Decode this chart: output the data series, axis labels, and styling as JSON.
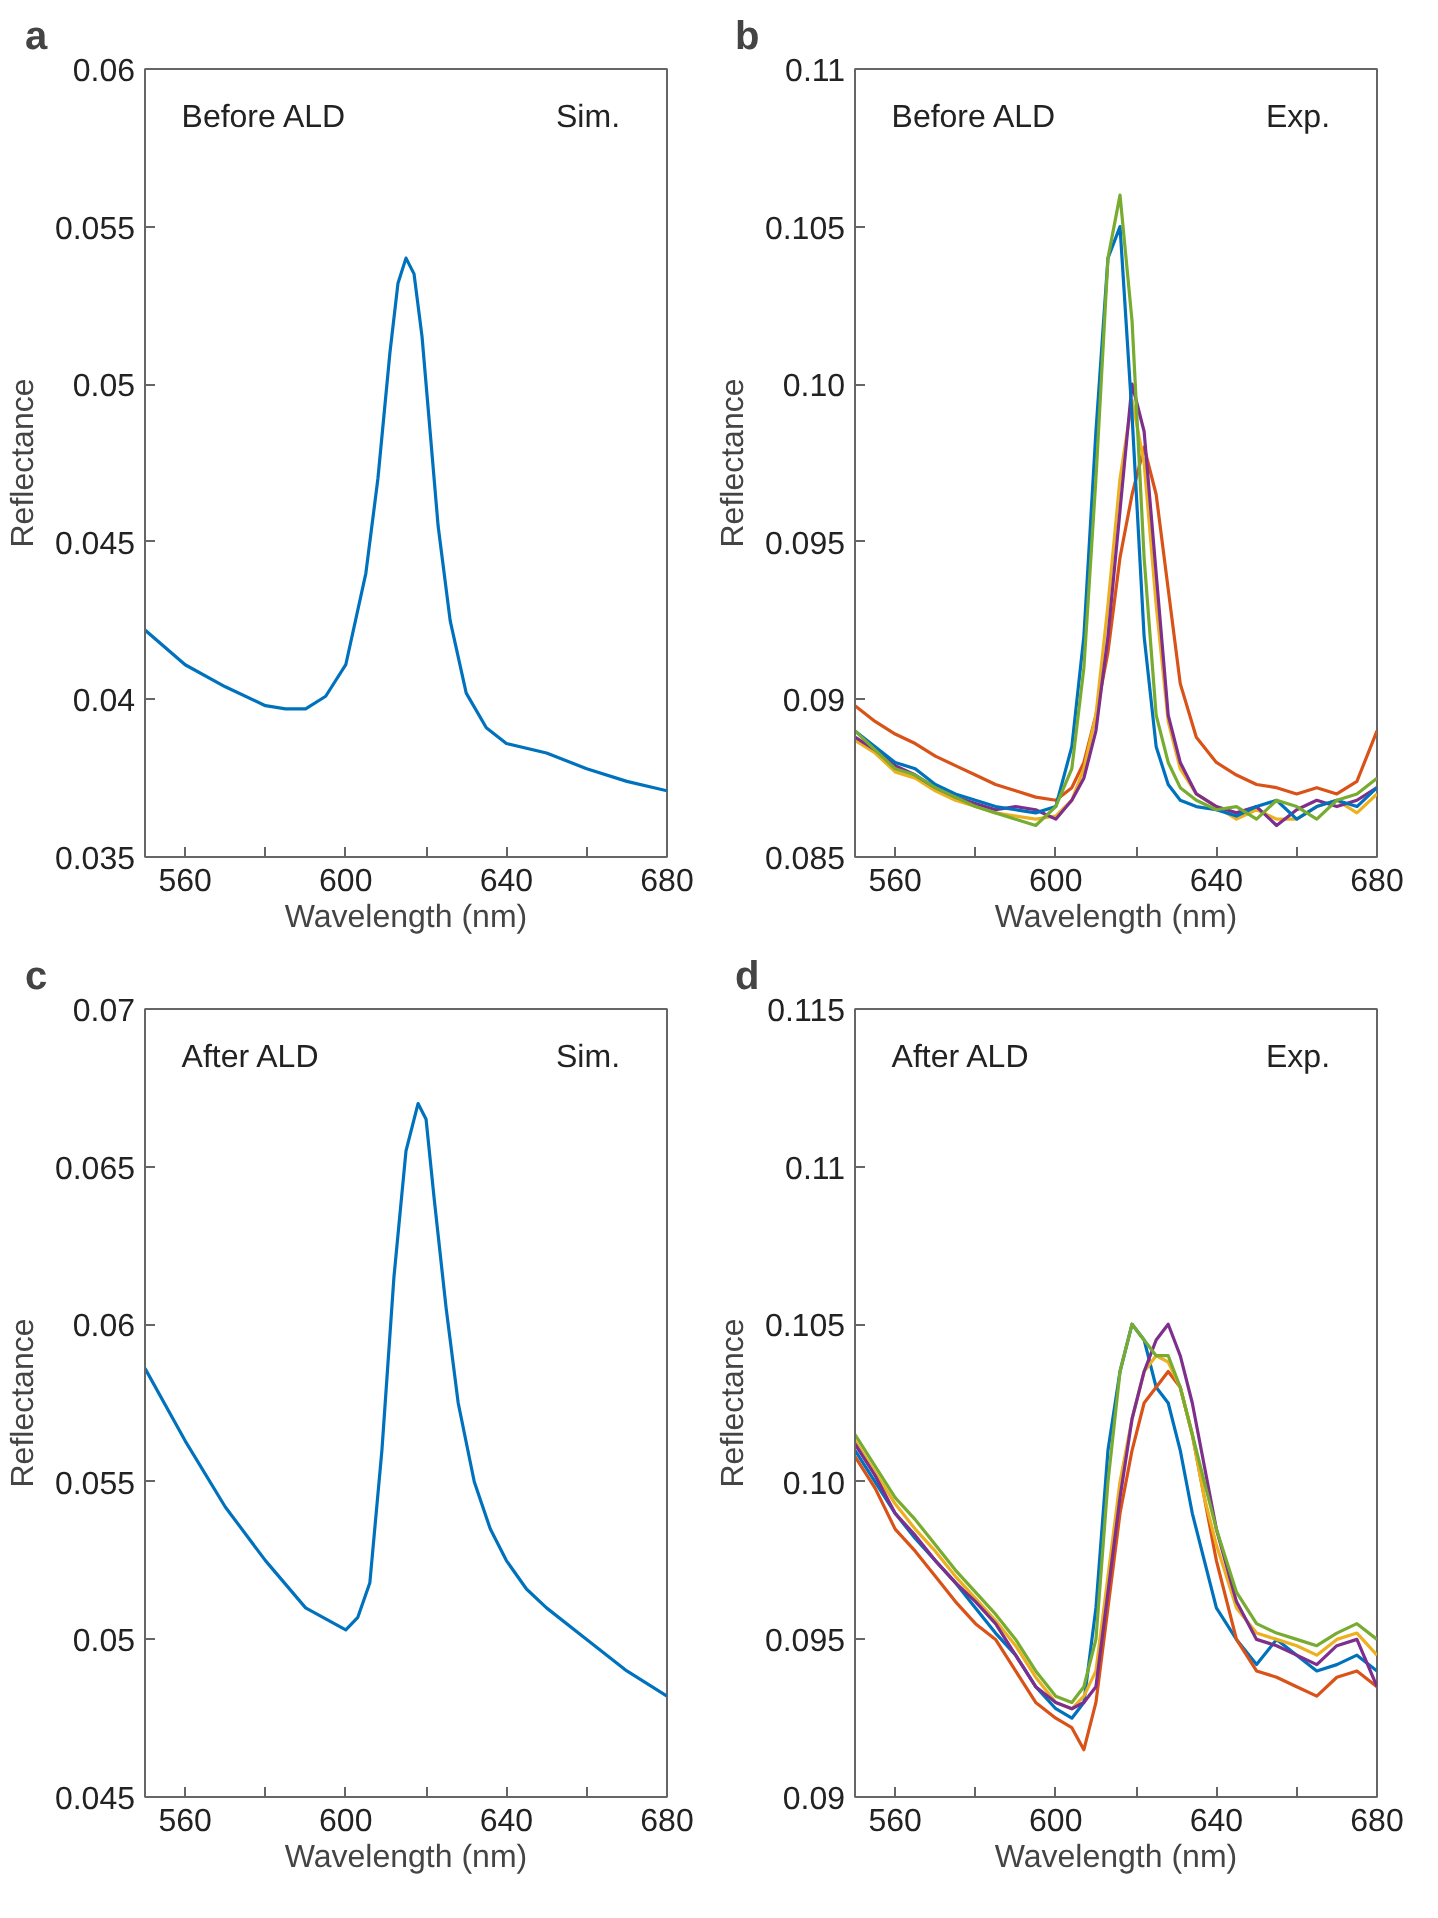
{
  "chart_data": [
    {
      "type": "line",
      "title": "a",
      "xlabel": "Wavelength (nm)",
      "ylabel": "Reflectance",
      "annotations": [
        "Before ALD",
        "Sim."
      ],
      "xlim": [
        550,
        680
      ],
      "xticks": [
        560,
        {
          "value": 580,
          "label": null
        },
        600,
        {
          "value": 620,
          "label": null
        },
        640,
        {
          "value": 660,
          "label": null
        },
        680
      ],
      "ylim": [
        0.035,
        0.06
      ],
      "yticks": [
        0.035,
        0.04,
        0.045,
        0.05,
        0.055,
        0.06
      ],
      "x": [
        550,
        560,
        570,
        580,
        585,
        590,
        595,
        600,
        605,
        608,
        611,
        613,
        615,
        617,
        619,
        621,
        623,
        626,
        630,
        635,
        640,
        650,
        660,
        670,
        680
      ],
      "series": [
        {
          "color": "#0072bd",
          "values": [
            0.0422,
            0.0411,
            0.0404,
            0.0398,
            0.0397,
            0.0397,
            0.0401,
            0.0411,
            0.044,
            0.047,
            0.051,
            0.0532,
            0.054,
            0.0535,
            0.0515,
            0.0485,
            0.0455,
            0.0425,
            0.0402,
            0.0391,
            0.0386,
            0.0383,
            0.0378,
            0.0374,
            0.0371
          ]
        }
      ]
    },
    {
      "type": "line",
      "title": "b",
      "xlabel": "Wavelength (nm)",
      "ylabel": "Reflectance",
      "annotations": [
        "Before ALD",
        "Exp."
      ],
      "xlim": [
        550,
        680
      ],
      "xticks": [
        560,
        {
          "value": 580,
          "label": null
        },
        600,
        {
          "value": 620,
          "label": null
        },
        640,
        {
          "value": 660,
          "label": null
        },
        680
      ],
      "ylim": [
        0.085,
        0.11
      ],
      "yticks": [
        0.085,
        0.09,
        0.095,
        {
          "value": 0.1,
          "label": "0.10"
        },
        0.105,
        0.11
      ],
      "x": [
        550,
        555,
        560,
        565,
        570,
        575,
        580,
        585,
        590,
        595,
        600,
        604,
        607,
        610,
        613,
        616,
        619,
        622,
        625,
        628,
        631,
        635,
        640,
        645,
        650,
        655,
        660,
        665,
        670,
        675,
        680
      ],
      "series": [
        {
          "color": "#d95319",
          "values": [
            0.0898,
            0.0893,
            0.0889,
            0.0886,
            0.0882,
            0.0879,
            0.0876,
            0.0873,
            0.0871,
            0.0869,
            0.0868,
            0.0872,
            0.088,
            0.0895,
            0.0915,
            0.0945,
            0.0965,
            0.098,
            0.0965,
            0.0935,
            0.0905,
            0.0888,
            0.088,
            0.0876,
            0.0873,
            0.0872,
            0.087,
            0.0872,
            0.087,
            0.0874,
            0.089
          ]
        },
        {
          "color": "#edb120",
          "values": [
            0.0887,
            0.0883,
            0.0877,
            0.0875,
            0.0871,
            0.0868,
            0.0866,
            0.0864,
            0.0863,
            0.0862,
            0.0863,
            0.0868,
            0.0878,
            0.0895,
            0.093,
            0.097,
            0.0995,
            0.0975,
            0.093,
            0.0893,
            0.0878,
            0.087,
            0.0866,
            0.0862,
            0.0865,
            0.0862,
            0.0862,
            0.0866,
            0.0868,
            0.0864,
            0.087
          ]
        },
        {
          "color": "#7e2f8e",
          "values": [
            0.0888,
            0.0884,
            0.0879,
            0.0876,
            0.0872,
            0.0869,
            0.0867,
            0.0865,
            0.0866,
            0.0865,
            0.0862,
            0.0868,
            0.0875,
            0.089,
            0.092,
            0.096,
            0.1,
            0.0985,
            0.094,
            0.0895,
            0.088,
            0.087,
            0.0866,
            0.0864,
            0.0866,
            0.086,
            0.0865,
            0.0868,
            0.0866,
            0.0868,
            0.0872
          ]
        },
        {
          "color": "#0072bd",
          "values": [
            0.089,
            0.0885,
            0.088,
            0.0878,
            0.0873,
            0.087,
            0.0868,
            0.0866,
            0.0865,
            0.0864,
            0.0866,
            0.0885,
            0.092,
            0.0985,
            0.104,
            0.105,
            0.099,
            0.092,
            0.0885,
            0.0873,
            0.0868,
            0.0866,
            0.0865,
            0.0863,
            0.0866,
            0.0868,
            0.0862,
            0.0866,
            0.0868,
            0.0866,
            0.0872
          ]
        },
        {
          "color": "#77ac30",
          "values": [
            0.089,
            0.0884,
            0.0878,
            0.0876,
            0.0872,
            0.0869,
            0.0866,
            0.0864,
            0.0862,
            0.086,
            0.0866,
            0.0878,
            0.091,
            0.097,
            0.104,
            0.106,
            0.102,
            0.0945,
            0.0895,
            0.088,
            0.0872,
            0.0868,
            0.0865,
            0.0866,
            0.0862,
            0.0868,
            0.0866,
            0.0862,
            0.0868,
            0.087,
            0.0875
          ]
        }
      ]
    },
    {
      "type": "line",
      "title": "c",
      "xlabel": "Wavelength (nm)",
      "ylabel": "Reflectance",
      "annotations": [
        "After ALD",
        "Sim."
      ],
      "xlim": [
        550,
        680
      ],
      "xticks": [
        560,
        {
          "value": 580,
          "label": null
        },
        600,
        {
          "value": 620,
          "label": null
        },
        640,
        {
          "value": 660,
          "label": null
        },
        680
      ],
      "ylim": [
        0.045,
        0.07
      ],
      "yticks": [
        0.045,
        0.05,
        0.055,
        0.06,
        0.065,
        0.07
      ],
      "x": [
        550,
        560,
        570,
        580,
        590,
        600,
        603,
        606,
        609,
        612,
        615,
        618,
        620,
        622,
        625,
        628,
        632,
        636,
        640,
        645,
        650,
        660,
        670,
        680
      ],
      "series": [
        {
          "color": "#0072bd",
          "values": [
            0.0586,
            0.0563,
            0.0542,
            0.0525,
            0.051,
            0.0503,
            0.0507,
            0.0518,
            0.056,
            0.0615,
            0.0655,
            0.067,
            0.0665,
            0.064,
            0.0605,
            0.0575,
            0.055,
            0.0535,
            0.0525,
            0.0516,
            0.051,
            0.05,
            0.049,
            0.0482
          ]
        }
      ]
    },
    {
      "type": "line",
      "title": "d",
      "xlabel": "Wavelength (nm)",
      "ylabel": "Reflectance",
      "annotations": [
        "After ALD",
        "Exp."
      ],
      "xlim": [
        550,
        680
      ],
      "xticks": [
        560,
        {
          "value": 580,
          "label": null
        },
        600,
        {
          "value": 620,
          "label": null
        },
        640,
        {
          "value": 660,
          "label": null
        },
        680
      ],
      "ylim": [
        0.09,
        0.115
      ],
      "yticks": [
        0.09,
        0.095,
        {
          "value": 0.1,
          "label": "0.10"
        },
        0.105,
        0.11,
        0.115
      ],
      "x": [
        550,
        555,
        560,
        565,
        570,
        575,
        580,
        585,
        590,
        595,
        600,
        604,
        607,
        610,
        613,
        616,
        619,
        622,
        625,
        628,
        631,
        634,
        637,
        640,
        645,
        650,
        655,
        660,
        665,
        670,
        675,
        680
      ],
      "series": [
        {
          "color": "#0072bd",
          "values": [
            0.101,
            0.1,
            0.099,
            0.0982,
            0.0975,
            0.0968,
            0.096,
            0.0952,
            0.0945,
            0.0935,
            0.0928,
            0.0925,
            0.093,
            0.096,
            0.101,
            0.1035,
            0.105,
            0.1045,
            0.103,
            0.1025,
            0.101,
            0.099,
            0.0975,
            0.096,
            0.095,
            0.0942,
            0.095,
            0.0945,
            0.094,
            0.0942,
            0.0945,
            0.094
          ]
        },
        {
          "color": "#d95319",
          "values": [
            0.1008,
            0.0998,
            0.0985,
            0.0978,
            0.097,
            0.0962,
            0.0955,
            0.095,
            0.094,
            0.093,
            0.0925,
            0.0922,
            0.0915,
            0.093,
            0.096,
            0.099,
            0.101,
            0.1025,
            0.103,
            0.1035,
            0.103,
            0.1015,
            0.0995,
            0.0975,
            0.095,
            0.094,
            0.0938,
            0.0935,
            0.0932,
            0.0938,
            0.094,
            0.0935
          ]
        },
        {
          "color": "#edb120",
          "values": [
            0.1013,
            0.1003,
            0.0993,
            0.0985,
            0.0978,
            0.097,
            0.0963,
            0.0956,
            0.0948,
            0.0938,
            0.093,
            0.0928,
            0.0932,
            0.094,
            0.097,
            0.1,
            0.102,
            0.1035,
            0.104,
            0.1038,
            0.103,
            0.1015,
            0.0995,
            0.098,
            0.096,
            0.0952,
            0.095,
            0.0948,
            0.0945,
            0.095,
            0.0952,
            0.0945
          ]
        },
        {
          "color": "#7e2f8e",
          "values": [
            0.1012,
            0.1002,
            0.099,
            0.0983,
            0.0975,
            0.0968,
            0.0962,
            0.0955,
            0.0945,
            0.0935,
            0.093,
            0.0928,
            0.093,
            0.0935,
            0.0965,
            0.0995,
            0.102,
            0.1035,
            0.1045,
            0.105,
            0.104,
            0.1025,
            0.1005,
            0.0985,
            0.0962,
            0.095,
            0.0948,
            0.0945,
            0.0942,
            0.0948,
            0.095,
            0.0935
          ]
        },
        {
          "color": "#77ac30",
          "values": [
            0.1015,
            0.1005,
            0.0995,
            0.0988,
            0.098,
            0.0972,
            0.0965,
            0.0958,
            0.095,
            0.094,
            0.0932,
            0.093,
            0.0935,
            0.095,
            0.1,
            0.1035,
            0.105,
            0.1045,
            0.104,
            0.104,
            0.103,
            0.1015,
            0.1,
            0.0985,
            0.0965,
            0.0955,
            0.0952,
            0.095,
            0.0948,
            0.0952,
            0.0955,
            0.095
          ]
        }
      ]
    }
  ]
}
